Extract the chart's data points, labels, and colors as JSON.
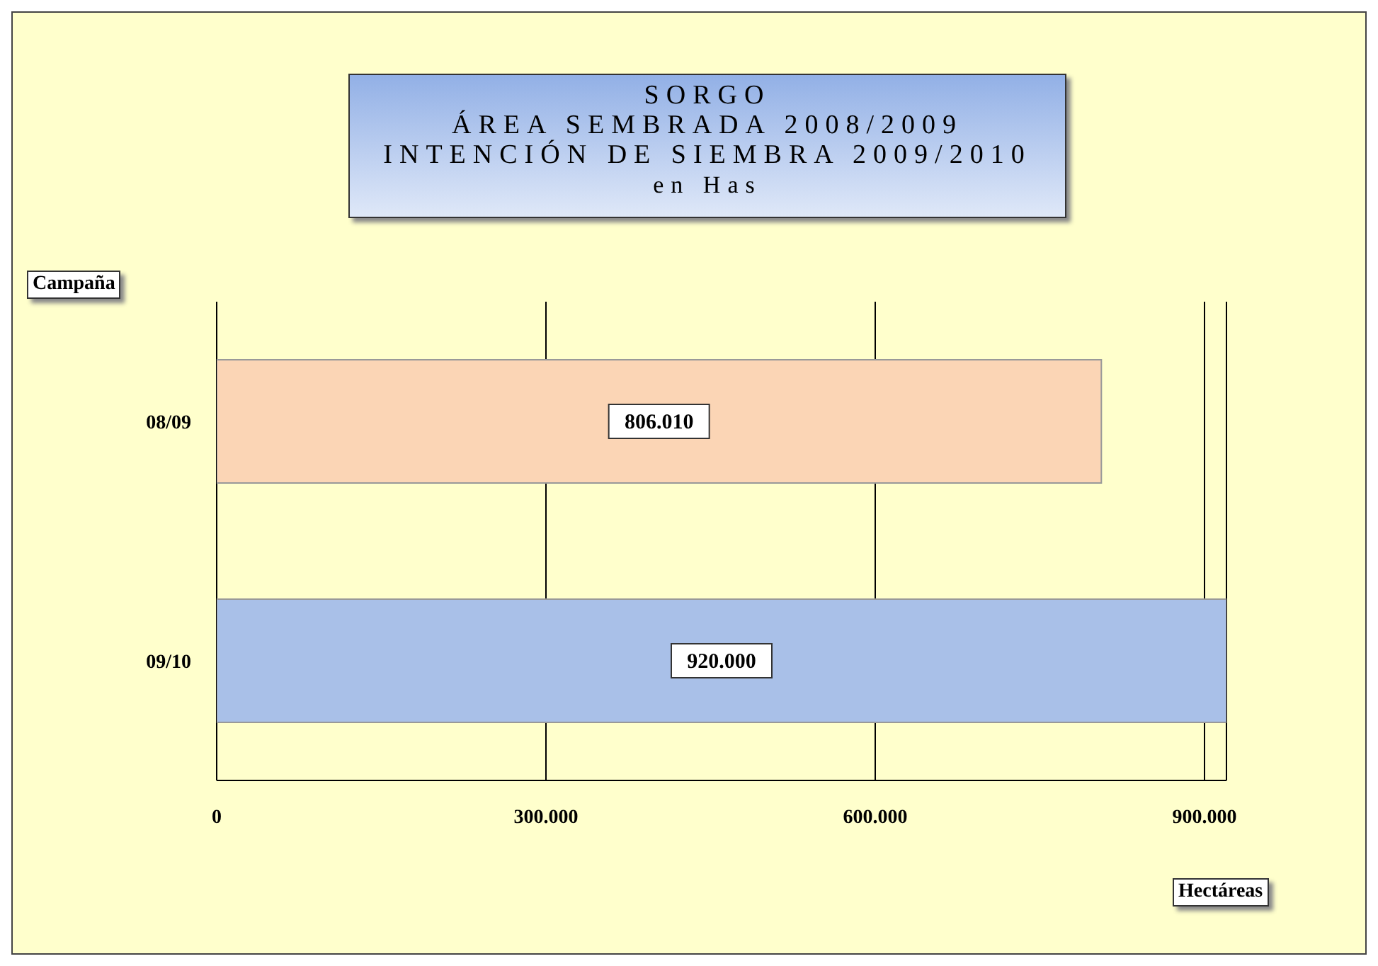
{
  "chart_data": {
    "type": "bar",
    "orientation": "horizontal",
    "title": "SORGO\nÁREA SEMBRADA 2008/2009\nINTENCIÓN DE SIEMBRA 2009/2010",
    "subtitle": "en Has",
    "xlabel": "Hectáreas",
    "ylabel": "Campaña",
    "categories": [
      "08/09",
      "09/10"
    ],
    "values": [
      806010,
      920000
    ],
    "colors": [
      "#fbd5b5",
      "#a9c0e8"
    ],
    "value_labels": [
      "806.010",
      "920.000"
    ],
    "xlim": [
      0,
      920000
    ],
    "xticks": [
      {
        "value": 0,
        "label": "0"
      },
      {
        "value": 300000,
        "label": "300.000"
      },
      {
        "value": 600000,
        "label": "600.000"
      },
      {
        "value": 900000,
        "label": "900.000"
      }
    ],
    "grid": "x"
  }
}
